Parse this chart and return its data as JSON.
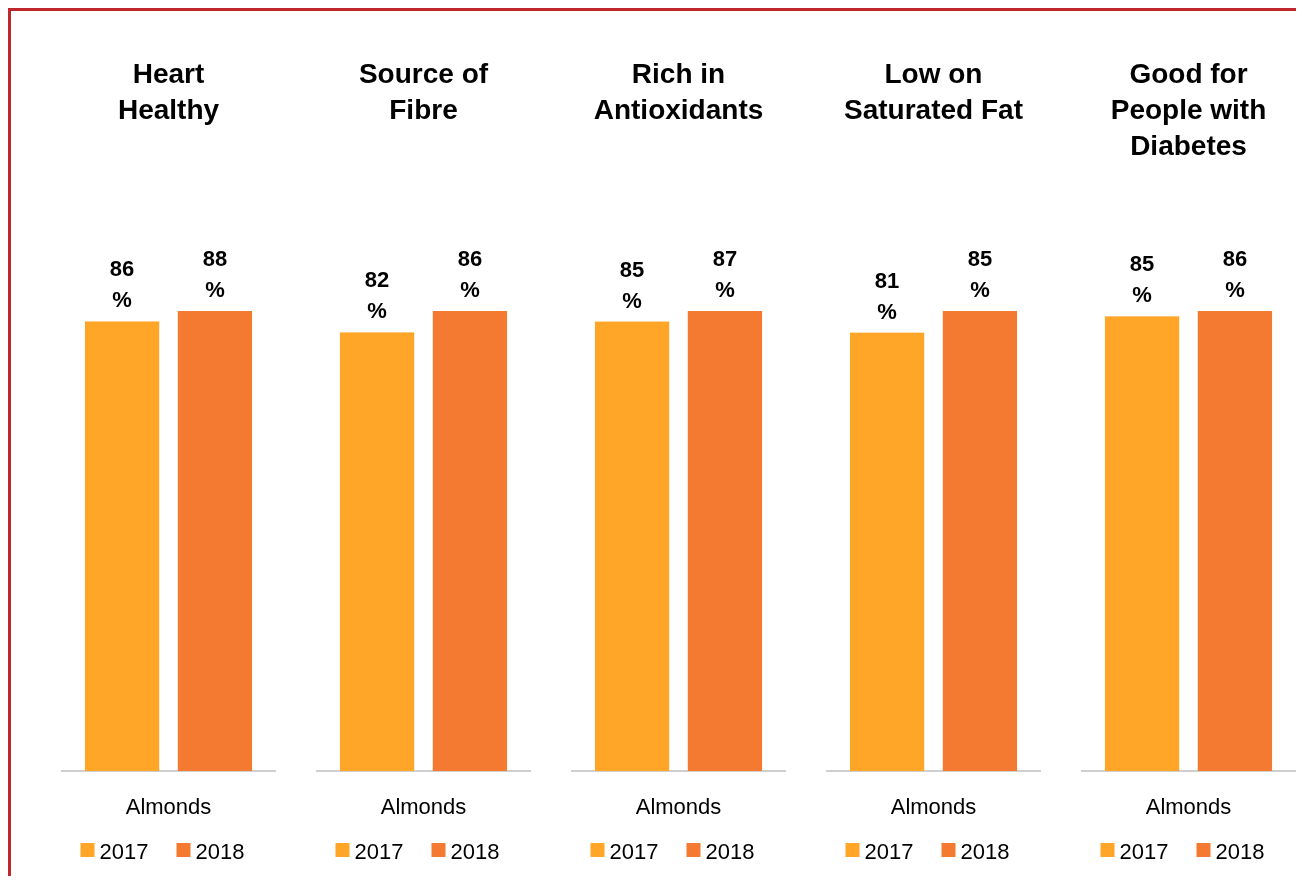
{
  "chart_data": [
    {
      "type": "bar",
      "title": "Heart\nHealthy",
      "categories": [
        "Almonds"
      ],
      "legend": "bottom",
      "series": [
        {
          "name": "2017",
          "color": "#ffa629",
          "values": [
            86
          ],
          "value_labels": [
            "86\n%"
          ]
        },
        {
          "name": "2018",
          "color": "#f47a32",
          "values": [
            88
          ],
          "value_labels": [
            "88\n%"
          ]
        }
      ]
    },
    {
      "type": "bar",
      "title": "Source of\nFibre",
      "categories": [
        "Almonds"
      ],
      "legend": "bottom",
      "series": [
        {
          "name": "2017",
          "color": "#ffa629",
          "values": [
            82
          ],
          "value_labels": [
            "82\n%"
          ]
        },
        {
          "name": "2018",
          "color": "#f47a32",
          "values": [
            86
          ],
          "value_labels": [
            "86\n%"
          ]
        }
      ]
    },
    {
      "type": "bar",
      "title": "Rich in\nAntioxidants",
      "categories": [
        "Almonds"
      ],
      "legend": "bottom",
      "series": [
        {
          "name": "2017",
          "color": "#ffa629",
          "values": [
            85
          ],
          "value_labels": [
            "85\n%"
          ]
        },
        {
          "name": "2018",
          "color": "#f47a32",
          "values": [
            87
          ],
          "value_labels": [
            "87\n%"
          ]
        }
      ]
    },
    {
      "type": "bar",
      "title": "Low on\nSaturated Fat",
      "categories": [
        "Almonds"
      ],
      "legend": "bottom",
      "series": [
        {
          "name": "2017",
          "color": "#ffa629",
          "values": [
            81
          ],
          "value_labels": [
            "81\n%"
          ]
        },
        {
          "name": "2018",
          "color": "#f47a32",
          "values": [
            85
          ],
          "value_labels": [
            "85\n%"
          ]
        }
      ]
    },
    {
      "type": "bar",
      "title": "Good for\nPeople with\nDiabetes",
      "categories": [
        "Almonds"
      ],
      "legend": "bottom",
      "series": [
        {
          "name": "2017",
          "color": "#ffa629",
          "values": [
            85
          ],
          "value_labels": [
            "85\n%"
          ]
        },
        {
          "name": "2018",
          "color": "#f47a32",
          "values": [
            86
          ],
          "value_labels": [
            "86\n%"
          ]
        }
      ]
    }
  ]
}
